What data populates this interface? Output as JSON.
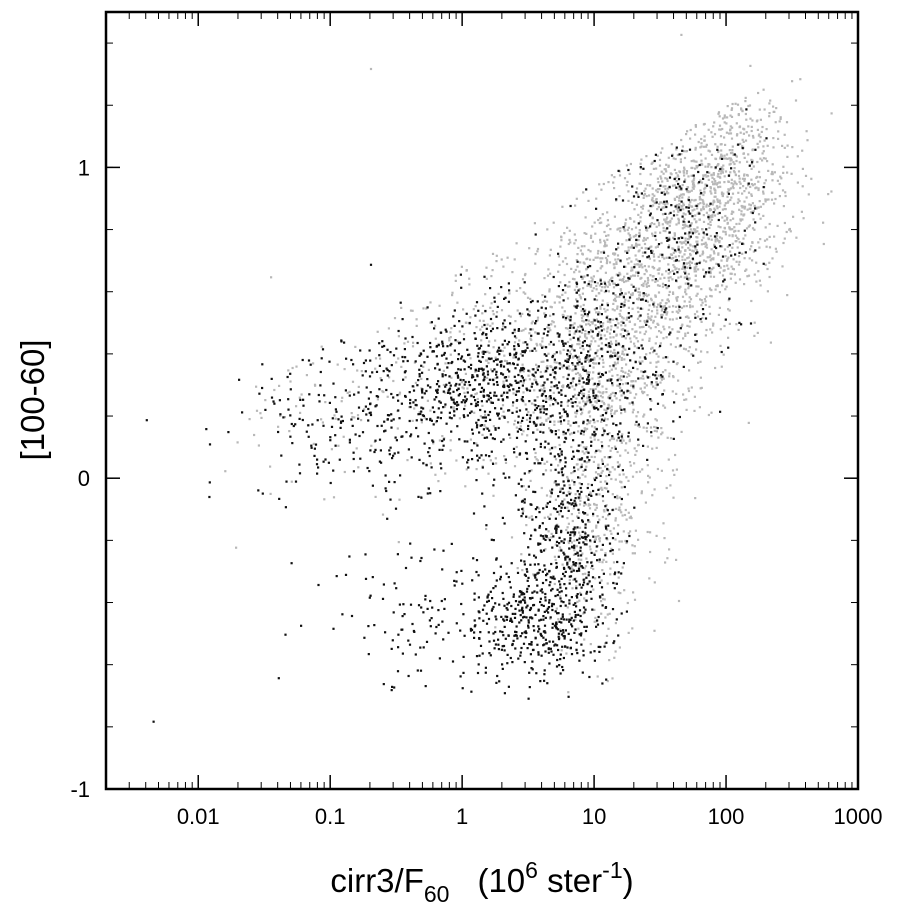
{
  "chart_data": {
    "type": "scatter",
    "xlabel": {
      "base": "cirr3/F",
      "base_sub": "60",
      "unit_open": "(10",
      "unit_sup": "6",
      "unit_mid": " ster",
      "unit_sup2": "-1",
      "unit_close": ")"
    },
    "ylabel": "[100-60]",
    "x_scale": "log",
    "xlim": [
      0.002,
      1000
    ],
    "ylim": [
      -1,
      1.5
    ],
    "x_ticks": [
      {
        "value": 0.01,
        "label": "0.01"
      },
      {
        "value": 0.1,
        "label": "0.1"
      },
      {
        "value": 1,
        "label": "1"
      },
      {
        "value": 10,
        "label": "10"
      },
      {
        "value": 100,
        "label": "100"
      },
      {
        "value": 1000,
        "label": "1000"
      }
    ],
    "y_ticks": [
      {
        "value": -1,
        "label": "-1"
      },
      {
        "value": 0,
        "label": "0"
      },
      {
        "value": 1,
        "label": "1"
      }
    ],
    "grid": false,
    "legend": "none",
    "series": [
      {
        "color": "#b8b8b8",
        "marker": "small dot",
        "clusters": [
          {
            "log10x_center": 1.95,
            "y_center": 0.95,
            "log10x_spread": 0.28,
            "y_spread": 0.17,
            "approx_count": 900
          },
          {
            "log10x_center": 1.5,
            "y_center": 0.7,
            "log10x_spread": 0.32,
            "y_spread": 0.18,
            "approx_count": 800
          },
          {
            "log10x_center": 1.05,
            "y_center": 0.4,
            "log10x_spread": 0.32,
            "y_spread": 0.22,
            "approx_count": 700
          },
          {
            "log10x_center": 1.0,
            "y_center": -0.1,
            "log10x_spread": 0.25,
            "y_spread": 0.22,
            "approx_count": 450
          },
          {
            "log10x_center": 0.3,
            "y_center": 0.4,
            "log10x_spread": 0.55,
            "y_spread": 0.2,
            "approx_count": 400
          },
          {
            "log10x_center": -1.0,
            "y_center": 0.22,
            "log10x_spread": 0.5,
            "y_spread": 0.12,
            "approx_count": 90
          }
        ],
        "points": [
          [
            45,
            1.43
          ],
          [
            0.2,
            1.32
          ],
          [
            150,
            1.33
          ],
          [
            400,
            1.12
          ],
          [
            0.035,
            0.65
          ],
          [
            0.019,
            -0.22
          ],
          [
            0.5,
            0.55
          ],
          [
            250,
            0.95
          ]
        ]
      },
      {
        "color": "#111111",
        "marker": "small dot",
        "clusters": [
          {
            "log10x_center": 0.22,
            "y_center": 0.3,
            "log10x_spread": 0.38,
            "y_spread": 0.13,
            "approx_count": 650
          },
          {
            "log10x_center": -0.75,
            "y_center": 0.2,
            "log10x_spread": 0.45,
            "y_spread": 0.13,
            "approx_count": 260
          },
          {
            "log10x_center": 0.55,
            "y_center": -0.45,
            "log10x_spread": 0.28,
            "y_spread": 0.1,
            "approx_count": 450
          },
          {
            "log10x_center": 0.8,
            "y_center": -0.15,
            "log10x_spread": 0.2,
            "y_spread": 0.2,
            "approx_count": 400
          },
          {
            "log10x_center": 0.95,
            "y_center": 0.4,
            "log10x_spread": 0.3,
            "y_spread": 0.16,
            "approx_count": 350
          },
          {
            "log10x_center": 1.65,
            "y_center": 0.8,
            "log10x_spread": 0.3,
            "y_spread": 0.17,
            "approx_count": 220
          },
          {
            "log10x_center": -0.35,
            "y_center": -0.45,
            "log10x_spread": 0.3,
            "y_spread": 0.12,
            "approx_count": 90
          }
        ],
        "points": [
          [
            0.004,
            0.19
          ],
          [
            0.0045,
            -0.78
          ],
          [
            0.012,
            -0.01
          ],
          [
            0.04,
            -0.64
          ],
          [
            0.08,
            -0.34
          ],
          [
            0.05,
            -0.27
          ],
          [
            0.2,
            0.69
          ],
          [
            140,
            1.19
          ],
          [
            0.3,
            -0.67
          ],
          [
            0.045,
            -0.5
          ],
          [
            0.02,
            0.32
          ],
          [
            0.03,
            0.37
          ]
        ]
      }
    ]
  }
}
